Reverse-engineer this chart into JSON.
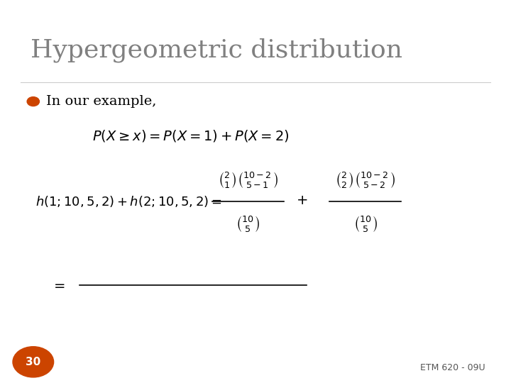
{
  "title": "Hypergeometric distribution",
  "title_color": "#808080",
  "background_color": "#ffffff",
  "bullet_color": "#cc4400",
  "bullet_text": "In our example,",
  "eq1": "P(X \\geq x) = P(X = 1) + P(X = 2)",
  "eq2_left": "h(1;10,5,2) + h(2;10,5,2) =",
  "eq_equals": "=",
  "page_number": "30",
  "footer": "ETM 620 - 09U",
  "page_circle_color": "#cc4400",
  "page_text_color": "#ffffff"
}
